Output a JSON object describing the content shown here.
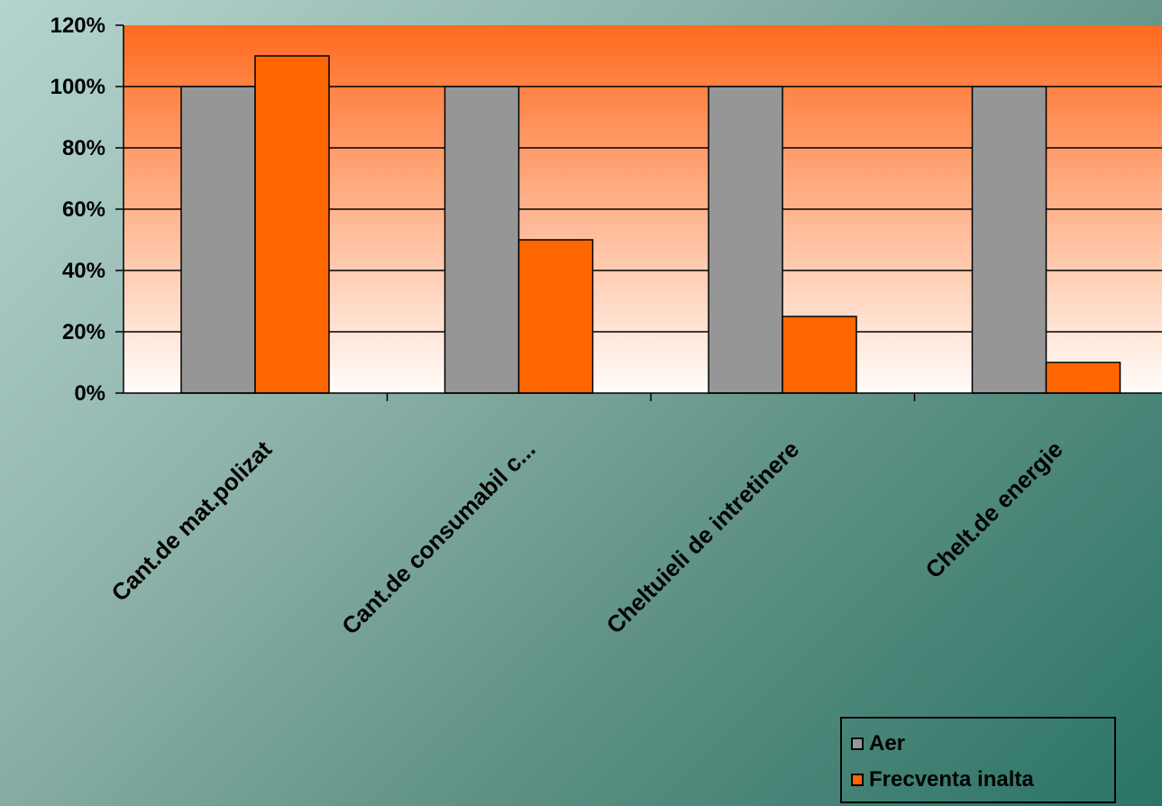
{
  "chart_data": {
    "type": "bar",
    "categories": [
      "Cant.de mat.polizat",
      "Cant.de consumabil c...",
      "Cheltuieli de intretinere",
      "Chelt.de energie"
    ],
    "series": [
      {
        "name": "Aer",
        "values": [
          100,
          100,
          100,
          100
        ],
        "color": "#969696"
      },
      {
        "name": "Frecventa inalta",
        "values": [
          110,
          50,
          25,
          10
        ],
        "color": "#ff6600"
      }
    ],
    "ylim": [
      0,
      120
    ],
    "yticks": [
      0,
      20,
      40,
      60,
      80,
      100,
      120
    ],
    "ytick_labels": [
      "0%",
      "20%",
      "40%",
      "60%",
      "80%",
      "100%",
      "120%"
    ],
    "grid": true,
    "legend_position": "bottom-right",
    "plot_background": {
      "top": "#ff6a1f",
      "bottom": "#fffdfb"
    }
  },
  "legend": {
    "items": [
      {
        "label": "Aer",
        "color": "#969696"
      },
      {
        "label": "Frecventa inalta",
        "color": "#ff6600"
      }
    ]
  }
}
